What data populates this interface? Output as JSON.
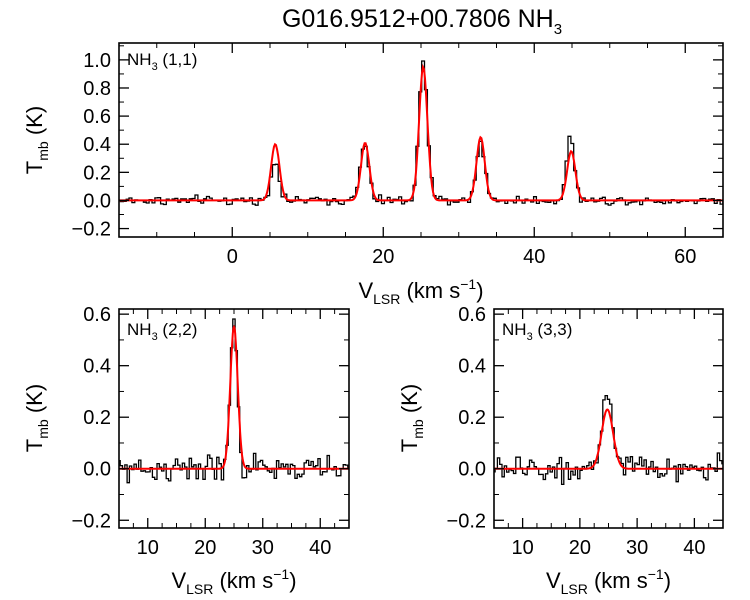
{
  "title": {
    "base": "G016.9512+00.7806 NH",
    "sub": "3"
  },
  "colors": {
    "observed": "#000000",
    "fit": "#ff0000",
    "frame": "#000000"
  },
  "chart_data": [
    {
      "type": "line",
      "label": {
        "pre": "NH",
        "sub": "3",
        "post": " (1,1)"
      },
      "xlabel": {
        "base": "V",
        "sub": "LSR",
        "post": " (km s",
        "sup": "−1",
        "close": ")"
      },
      "ylabel": {
        "base": "T",
        "sub": "mb",
        "post": " (K)"
      },
      "xlim": [
        -15,
        65
      ],
      "ylim": [
        -0.26,
        1.12
      ],
      "xticks": [
        0,
        20,
        40,
        60
      ],
      "xtick_labels": [
        "0",
        "20",
        "40",
        "60"
      ],
      "yticks": [
        -0.2,
        0.0,
        0.2,
        0.4,
        0.6,
        0.8,
        1.0
      ],
      "ytick_labels": [
        "−0.2",
        "0.0",
        "0.2",
        "0.4",
        "0.6",
        "0.8",
        "1.0"
      ],
      "noise_rms": 0.022,
      "spectrum_step_kms": 0.38,
      "series": [
        {
          "style": "step",
          "peaks": [
            [
              5.7,
              0.3,
              0.5
            ],
            [
              17.5,
              0.4,
              0.55
            ],
            [
              25.3,
              1.0,
              0.55
            ],
            [
              32.9,
              0.42,
              0.55
            ],
            [
              44.8,
              0.48,
              0.5
            ]
          ]
        },
        {
          "style": "line",
          "peaks": [
            [
              5.7,
              0.4,
              0.55
            ],
            [
              17.6,
              0.41,
              0.55
            ],
            [
              25.3,
              0.95,
              0.55
            ],
            [
              32.9,
              0.45,
              0.55
            ],
            [
              44.9,
              0.35,
              0.55
            ]
          ]
        }
      ]
    },
    {
      "type": "line",
      "label": {
        "pre": "NH",
        "sub": "3",
        "post": " (2,2)"
      },
      "xlabel": {
        "base": "V",
        "sub": "LSR",
        "post": " (km s",
        "sup": "−1",
        "close": ")"
      },
      "ylabel": {
        "base": "T",
        "sub": "mb",
        "post": " (K)"
      },
      "xlim": [
        5,
        45
      ],
      "ylim": [
        -0.23,
        0.62
      ],
      "xticks": [
        10,
        20,
        30,
        40
      ],
      "xtick_labels": [
        "10",
        "20",
        "30",
        "40"
      ],
      "yticks": [
        -0.2,
        0.0,
        0.2,
        0.4,
        0.6
      ],
      "ytick_labels": [
        "−0.2",
        "0.0",
        "0.2",
        "0.4",
        "0.6"
      ],
      "noise_rms": 0.035,
      "spectrum_step_kms": 0.4,
      "series": [
        {
          "style": "step",
          "peaks": [
            [
              25.0,
              0.56,
              0.6
            ]
          ]
        },
        {
          "style": "line",
          "peaks": [
            [
              25.0,
              0.55,
              0.65
            ]
          ]
        }
      ]
    },
    {
      "type": "line",
      "label": {
        "pre": "NH",
        "sub": "3",
        "post": " (3,3)"
      },
      "xlabel": {
        "base": "V",
        "sub": "LSR",
        "post": " (km s",
        "sup": "−1",
        "close": ")"
      },
      "ylabel": {
        "base": "T",
        "sub": "mb",
        "post": " (K)"
      },
      "xlim": [
        5,
        45
      ],
      "ylim": [
        -0.23,
        0.62
      ],
      "xticks": [
        10,
        20,
        30,
        40
      ],
      "xtick_labels": [
        "10",
        "20",
        "30",
        "40"
      ],
      "yticks": [
        -0.2,
        0.0,
        0.2,
        0.4,
        0.6
      ],
      "ytick_labels": [
        "−0.2",
        "0.0",
        "0.2",
        "0.4",
        "0.6"
      ],
      "noise_rms": 0.035,
      "spectrum_step_kms": 0.4,
      "series": [
        {
          "style": "step",
          "peaks": [
            [
              24.8,
              0.27,
              0.9
            ]
          ]
        },
        {
          "style": "line",
          "peaks": [
            [
              24.8,
              0.23,
              1.0
            ]
          ]
        }
      ]
    }
  ]
}
